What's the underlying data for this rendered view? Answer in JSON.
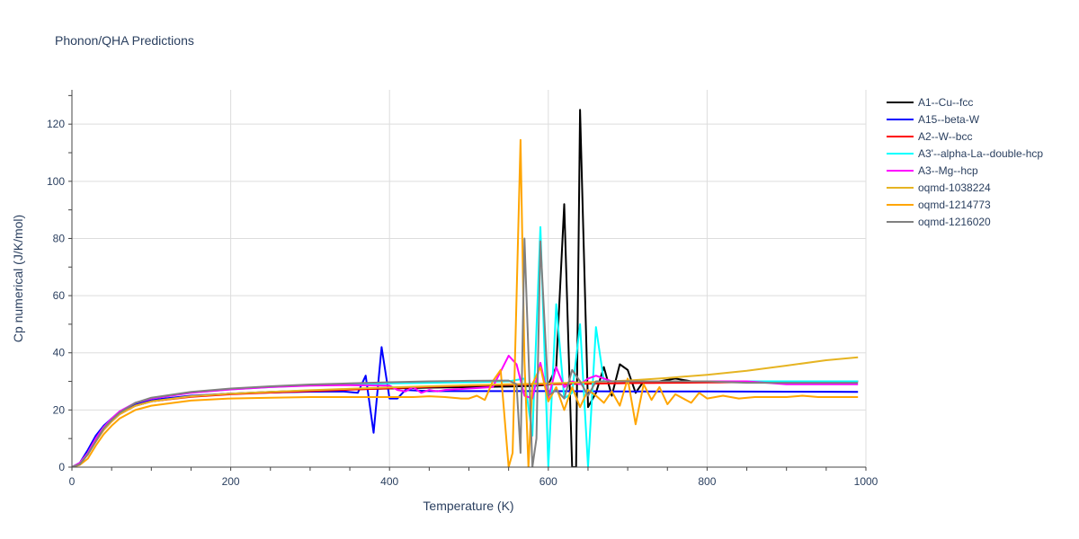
{
  "chart_data": {
    "type": "line",
    "title": "Phonon/QHA Predictions",
    "xlabel": "Temperature (K)",
    "ylabel": "Cp numerical (J/K/mol)",
    "xlim": [
      0,
      1000
    ],
    "ylim": [
      0,
      132
    ],
    "xticks": [
      0,
      200,
      400,
      600,
      800,
      1000
    ],
    "yticks": [
      0,
      20,
      40,
      60,
      80,
      100,
      120
    ],
    "grid": true,
    "legend_position": "top-right",
    "series": [
      {
        "name": "A1--Cu--fcc",
        "color": "#000000",
        "x": [
          0,
          10,
          20,
          30,
          40,
          50,
          60,
          80,
          100,
          150,
          200,
          250,
          300,
          350,
          400,
          450,
          500,
          550,
          580,
          590,
          600,
          610,
          620,
          630,
          635,
          640,
          650,
          660,
          670,
          680,
          690,
          700,
          710,
          720,
          740,
          760,
          780,
          800,
          850,
          900,
          950,
          990
        ],
        "y": [
          0,
          1.5,
          5,
          10,
          14,
          17,
          19,
          21.5,
          23,
          24.8,
          25.7,
          26.3,
          26.8,
          27.2,
          27.5,
          27.8,
          28,
          28.2,
          28.4,
          28.6,
          28.8,
          35,
          92,
          0,
          0,
          125,
          21,
          26,
          35,
          25,
          36,
          34,
          26,
          30,
          30,
          31,
          30,
          30,
          30,
          30,
          30,
          30
        ]
      },
      {
        "name": "A15--beta-W",
        "color": "#0000ff",
        "x": [
          0,
          10,
          20,
          30,
          40,
          50,
          60,
          80,
          100,
          150,
          200,
          250,
          300,
          340,
          360,
          370,
          380,
          390,
          400,
          410,
          420,
          450,
          500,
          550,
          600,
          700,
          800,
          900,
          990
        ],
        "y": [
          0,
          1.5,
          6,
          11,
          14.5,
          17,
          19,
          22,
          23.5,
          25,
          25.7,
          26.1,
          26.4,
          26.5,
          26,
          32,
          12,
          42,
          24,
          24,
          27,
          26.6,
          26.6,
          26.6,
          26.6,
          26.5,
          26.5,
          26.4,
          26.3
        ]
      },
      {
        "name": "A2--W--bcc",
        "color": "#ff0000",
        "x": [
          0,
          10,
          20,
          30,
          40,
          50,
          60,
          80,
          100,
          150,
          200,
          250,
          300,
          350,
          400,
          450,
          500,
          550,
          600,
          700,
          800,
          900,
          990
        ],
        "y": [
          0,
          1,
          4.5,
          9,
          13,
          16,
          18.5,
          21.5,
          23,
          24.6,
          25.5,
          26.1,
          26.6,
          27.1,
          27.6,
          28.1,
          28.5,
          28.8,
          29,
          29.4,
          29.6,
          29.8,
          30
        ]
      },
      {
        "name": "A3'--alpha-La--double-hcp",
        "color": "#00ffff",
        "x": [
          0,
          10,
          20,
          30,
          40,
          50,
          60,
          80,
          100,
          150,
          200,
          250,
          300,
          350,
          400,
          450,
          500,
          550,
          570,
          580,
          590,
          600,
          610,
          620,
          630,
          640,
          650,
          660,
          670,
          680,
          700,
          750,
          800,
          850,
          900,
          950,
          990
        ],
        "y": [
          0,
          1.5,
          5,
          10,
          14,
          17,
          19.5,
          22.5,
          24,
          26,
          27.2,
          28,
          28.6,
          29,
          29.3,
          29.5,
          29.7,
          30,
          31,
          11,
          84,
          0,
          57,
          24,
          26,
          50,
          0,
          49,
          30,
          30,
          30,
          30,
          30,
          30,
          30,
          30,
          30
        ]
      },
      {
        "name": "A3--Mg--hcp",
        "color": "#ff00ff",
        "x": [
          0,
          10,
          20,
          30,
          40,
          50,
          60,
          80,
          100,
          150,
          200,
          250,
          300,
          350,
          400,
          410,
          420,
          430,
          440,
          450,
          460,
          470,
          500,
          530,
          550,
          560,
          570,
          580,
          590,
          600,
          610,
          620,
          630,
          640,
          650,
          660,
          680,
          700,
          750,
          800,
          850,
          900,
          950,
          990
        ],
        "y": [
          0,
          1.5,
          5,
          10,
          14,
          17,
          19.5,
          22.5,
          24,
          26,
          27.2,
          28,
          28.5,
          28.7,
          28.5,
          27,
          26.5,
          28,
          26,
          27,
          26.5,
          27,
          27.5,
          28,
          39,
          36,
          25,
          24,
          36.5,
          24,
          35,
          28,
          30,
          29,
          31,
          32,
          30,
          30,
          30,
          30,
          30,
          29,
          29,
          29
        ]
      },
      {
        "name": "oqmd-1038224",
        "color": "#e6b422",
        "x": [
          0,
          10,
          20,
          30,
          40,
          50,
          60,
          80,
          100,
          150,
          200,
          250,
          300,
          350,
          400,
          450,
          500,
          550,
          600,
          650,
          700,
          750,
          800,
          850,
          900,
          950,
          990
        ],
        "y": [
          0,
          1,
          4.5,
          9,
          13,
          16,
          18.5,
          21.5,
          23,
          24.8,
          25.7,
          26.3,
          26.9,
          27.4,
          27.9,
          28.3,
          28.7,
          29,
          29.3,
          29.7,
          30.3,
          31.2,
          32.3,
          33.7,
          35.5,
          37.4,
          38.4
        ]
      },
      {
        "name": "oqmd-1214773",
        "color": "#ffa500",
        "x": [
          0,
          10,
          20,
          30,
          40,
          50,
          60,
          80,
          100,
          150,
          200,
          250,
          300,
          350,
          400,
          430,
          450,
          470,
          490,
          500,
          510,
          520,
          530,
          540,
          550,
          555,
          565,
          570,
          575,
          580,
          590,
          600,
          610,
          620,
          630,
          640,
          650,
          660,
          670,
          680,
          690,
          700,
          710,
          720,
          730,
          740,
          750,
          760,
          780,
          790,
          800,
          820,
          840,
          860,
          880,
          900,
          920,
          940,
          960,
          980,
          990
        ],
        "y": [
          0,
          0.8,
          3,
          7.5,
          11.5,
          14.5,
          17,
          20,
          21.5,
          23.3,
          24,
          24.3,
          24.5,
          24.5,
          24.5,
          24.5,
          24.8,
          24.5,
          24,
          24,
          25,
          23.5,
          30,
          34,
          0,
          5,
          114.5,
          37,
          0,
          29,
          35,
          23,
          28,
          20,
          28,
          21,
          27,
          25,
          22.5,
          26.5,
          21.5,
          31,
          15,
          29,
          23.5,
          28,
          22,
          25.5,
          22.5,
          26,
          24,
          25,
          24,
          24.5,
          24.5,
          24.5,
          25,
          24.5,
          24.5,
          24.5,
          24.5
        ]
      },
      {
        "name": "oqmd-1216020",
        "color": "#808080",
        "x": [
          0,
          10,
          20,
          30,
          40,
          50,
          60,
          80,
          100,
          150,
          200,
          250,
          300,
          350,
          400,
          450,
          500,
          550,
          560,
          565,
          570,
          575,
          580,
          585,
          590,
          600,
          610,
          620,
          630,
          640,
          650,
          660,
          680,
          700,
          750,
          800,
          850,
          900,
          950,
          990
        ],
        "y": [
          0,
          1,
          4.5,
          9,
          13.5,
          16.5,
          19,
          22.5,
          24.3,
          26.3,
          27.5,
          28.3,
          28.9,
          29.3,
          29.7,
          30,
          30.2,
          30.3,
          29,
          5,
          80,
          40,
          0,
          10,
          79,
          25,
          27,
          24,
          34,
          30,
          25,
          30,
          30,
          30,
          30,
          30,
          29.5,
          29.5,
          29.5,
          29.5
        ]
      }
    ]
  }
}
